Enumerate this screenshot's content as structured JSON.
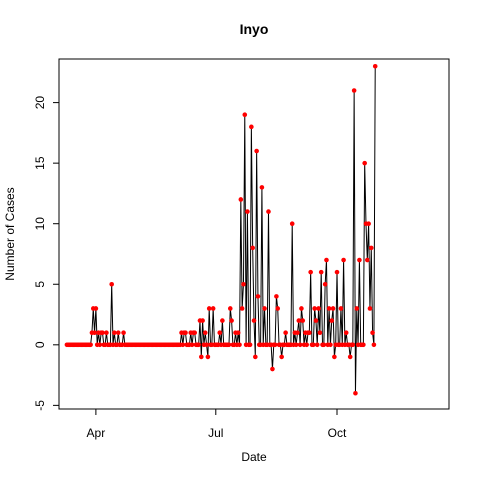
{
  "chart_data": {
    "type": "line",
    "title": "Inyo",
    "xlabel": "Date",
    "ylabel": "Number of Cases",
    "x_start": "2020-03-10",
    "x_ticks": [
      {
        "label": "Apr",
        "date": "2020-04-01"
      },
      {
        "label": "Jul",
        "date": "2020-07-01"
      },
      {
        "label": "Oct",
        "date": "2020-10-01"
      }
    ],
    "y_ticks": [
      -5,
      0,
      5,
      10,
      15,
      20
    ],
    "xlim": [
      "2020-03-04",
      "2020-12-25"
    ],
    "ylim": [
      -5.3,
      23.6
    ],
    "grid": false,
    "point_color": "#ff0000",
    "line_color": "#000000",
    "series": [
      {
        "values": [
          0,
          0,
          0,
          0,
          0,
          0,
          0,
          0,
          0,
          0,
          0,
          0,
          0,
          0,
          0,
          0,
          0,
          0,
          0,
          1,
          3,
          1,
          3,
          0,
          1,
          0,
          1,
          1,
          0,
          0,
          1,
          0,
          0,
          0,
          5,
          0,
          1,
          0,
          0,
          1,
          0,
          0,
          0,
          1,
          0,
          0,
          0,
          0,
          0,
          0,
          0,
          0,
          0,
          0,
          0,
          0,
          0,
          0,
          0,
          0,
          0,
          0,
          0,
          0,
          0,
          0,
          0,
          0,
          0,
          0,
          0,
          0,
          0,
          0,
          0,
          0,
          0,
          0,
          0,
          0,
          0,
          0,
          0,
          0,
          0,
          0,
          0,
          1,
          0,
          1,
          1,
          0,
          0,
          0,
          1,
          0,
          1,
          1,
          0,
          0,
          0,
          2,
          -1,
          2,
          0,
          1,
          0,
          -1,
          3,
          0,
          0,
          3,
          0,
          0,
          0,
          0,
          1,
          0,
          2,
          0,
          0,
          0,
          0,
          0,
          3,
          2,
          0,
          0,
          1,
          0,
          1,
          0,
          12,
          3,
          5,
          19,
          0,
          11,
          0,
          0,
          18,
          8,
          2,
          -1,
          16,
          4,
          0,
          0,
          13,
          0,
          3,
          0,
          0,
          11,
          0,
          0,
          -2,
          0,
          0,
          4,
          3,
          0,
          0,
          -1,
          0,
          0,
          1,
          0,
          0,
          0,
          0,
          10,
          0,
          1,
          0,
          1,
          2,
          0,
          3,
          2,
          0,
          1,
          0,
          1,
          1,
          6,
          0,
          0,
          3,
          2,
          0,
          3,
          1,
          6,
          0,
          0,
          5,
          7,
          0,
          3,
          0,
          2,
          3,
          -1,
          0,
          6,
          0,
          0,
          3,
          0,
          7,
          0,
          1,
          0,
          0,
          -1,
          0,
          0,
          21,
          -4,
          3,
          0,
          7,
          0,
          0,
          0,
          15,
          10,
          7,
          10,
          3,
          8,
          1,
          0,
          23
        ]
      }
    ]
  }
}
